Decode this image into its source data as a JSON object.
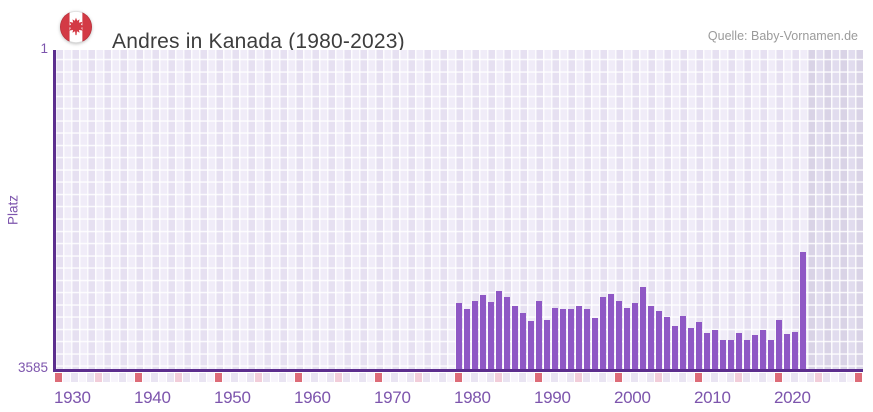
{
  "header": {
    "title": "Andres in Kanada (1980-2023)",
    "source": "Quelle: Baby-Vornamen.de",
    "flag_icon": "canada-flag-icon"
  },
  "axes": {
    "y_label": "Platz",
    "y_top_tick": "1",
    "y_bottom_tick": "3585",
    "x_ticks": [
      "1930",
      "1940",
      "1950",
      "1960",
      "1970",
      "1980",
      "1990",
      "2000",
      "2010",
      "2020"
    ]
  },
  "chart_data": {
    "type": "bar",
    "title": "Andres in Kanada (1980-2023)",
    "xlabel": "",
    "ylabel": "Platz",
    "y_axis": {
      "min": 1,
      "max": 3585,
      "inverted": true,
      "note": "rank 1 at top, bars grow upward from 3585 toward better rank"
    },
    "x_axis": {
      "min": 1930,
      "max": 2030,
      "data_start": 1980,
      "data_end": 2023
    },
    "legend": "none",
    "grid": true,
    "years": [
      1980,
      1981,
      1982,
      1983,
      1984,
      1985,
      1986,
      1987,
      1988,
      1989,
      1990,
      1991,
      1992,
      1993,
      1994,
      1995,
      1996,
      1997,
      1998,
      1999,
      2000,
      2001,
      2002,
      2003,
      2004,
      2005,
      2006,
      2007,
      2008,
      2009,
      2010,
      2011,
      2012,
      2013,
      2014,
      2015,
      2016,
      2017,
      2018,
      2019,
      2020,
      2021,
      2022,
      2023
    ],
    "ranks": [
      2840,
      2915,
      2820,
      2755,
      2830,
      2710,
      2770,
      2880,
      2950,
      3040,
      2820,
      3030,
      2900,
      2905,
      2910,
      2880,
      2915,
      3010,
      2775,
      2745,
      2825,
      2895,
      2840,
      2660,
      2875,
      2930,
      3000,
      3100,
      2985,
      3120,
      3060,
      3185,
      3145,
      3260,
      3260,
      3175,
      3260,
      3205,
      3145,
      3255,
      3035,
      3190,
      3165,
      2265
    ]
  },
  "colors": {
    "bar": "#8f58c5",
    "axis_line": "#5c2e8e",
    "tick_label": "#7d55ad",
    "title_text": "#3d3d3d",
    "source_text": "#9b9b9b",
    "strip_decade": "#dd6c78",
    "strip_half_decade": "#f2cdd9",
    "flag_red": "#d33a45"
  }
}
